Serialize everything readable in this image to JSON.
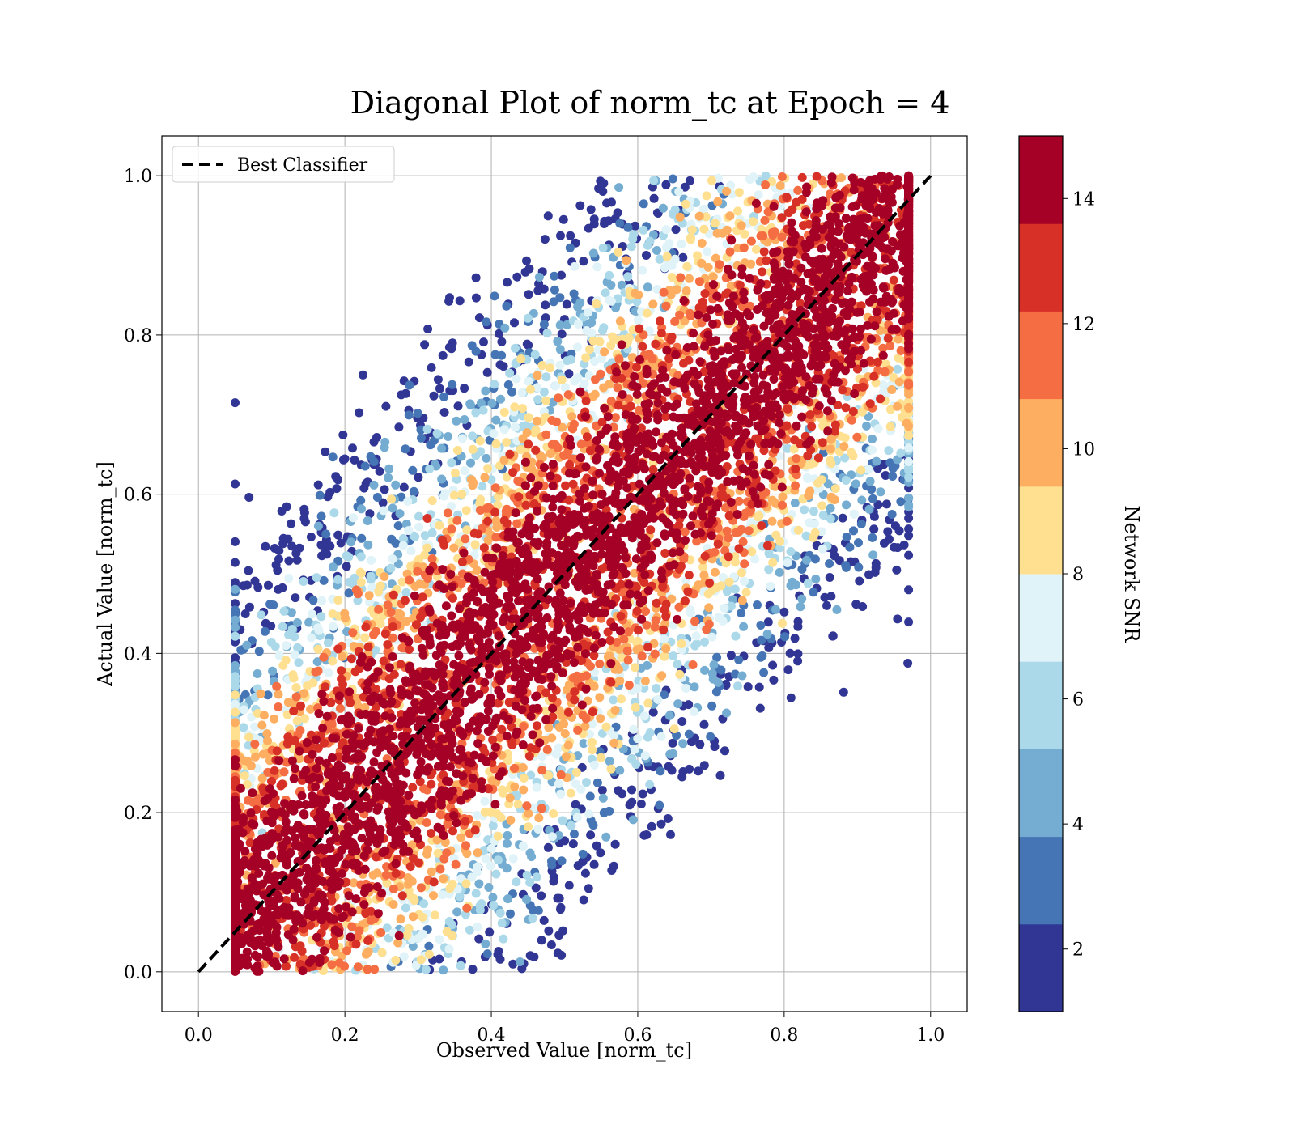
{
  "chart_data": {
    "type": "scatter",
    "title": "Diagonal Plot of norm_tc at Epoch = 4",
    "xlabel": "Observed Value [norm_tc]",
    "ylabel": "Actual Value [norm_tc]",
    "xlim": [
      -0.05,
      1.05
    ],
    "ylim": [
      -0.05,
      1.05
    ],
    "grid": true,
    "x_ticks": [
      0.0,
      0.2,
      0.4,
      0.6,
      0.8,
      1.0
    ],
    "y_ticks": [
      0.0,
      0.2,
      0.4,
      0.6,
      0.8,
      1.0
    ],
    "x_tick_labels": [
      "0.0",
      "0.2",
      "0.4",
      "0.6",
      "0.8",
      "1.0"
    ],
    "y_tick_labels": [
      "0.0",
      "0.2",
      "0.4",
      "0.6",
      "0.8",
      "1.0"
    ],
    "legend": {
      "placement": "top-left",
      "entries": [
        {
          "label": "Best Classifier",
          "style": "dashed",
          "color": "#000000"
        }
      ]
    },
    "reference_line": {
      "name": "Best Classifier",
      "x": [
        0.0,
        1.0
      ],
      "y": [
        0.0,
        1.0
      ]
    },
    "colorbar": {
      "label": "Network SNR",
      "range": [
        1,
        15
      ],
      "ticks": [
        2,
        4,
        6,
        8,
        10,
        12,
        14
      ],
      "tick_labels": [
        "2",
        "4",
        "6",
        "8",
        "10",
        "12",
        "14"
      ],
      "colors": [
        "#313695",
        "#4575b4",
        "#74add1",
        "#abd9e9",
        "#e0f3f8",
        "#fee090",
        "#fdae61",
        "#f46d43",
        "#d73027",
        "#a50026"
      ]
    },
    "scatter_description": {
      "x_range_observed": [
        0.05,
        0.97
      ],
      "y_range_actual": [
        0.0,
        1.0
      ],
      "high_snr_band_halfwidth": 0.12,
      "max_snr": 15,
      "min_snr": 1
    }
  }
}
